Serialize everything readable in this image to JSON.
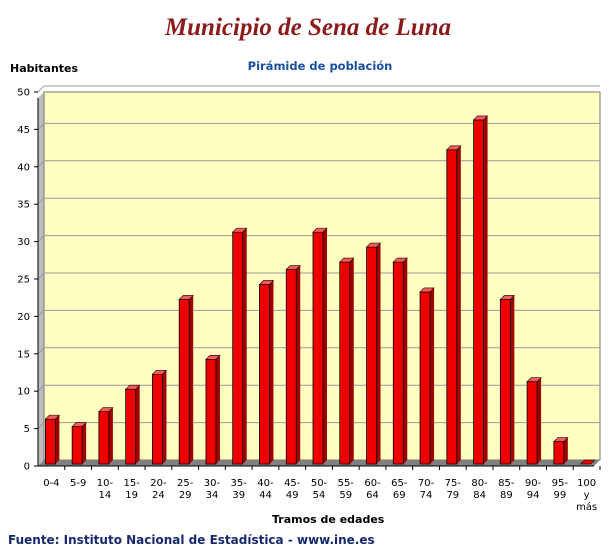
{
  "header": {
    "title": "Municipio de Sena de Luna",
    "subtitle": "Pirámide de población"
  },
  "footer": {
    "source": "Fuente: Instituto Nacional de Estadística - www.ine.es"
  },
  "chart_data": {
    "type": "bar",
    "title": "Pirámide de población",
    "ylabel": "Habitantes",
    "xlabel": "Tramos de edades",
    "ylim": [
      0,
      50
    ],
    "yticks": [
      0,
      5,
      10,
      15,
      20,
      25,
      30,
      35,
      40,
      45,
      50
    ],
    "grid": true,
    "legend": "none",
    "colors": {
      "bar": "#ee0000",
      "bar_side": "#a00000",
      "bar_top": "#ff5a5a",
      "plot_bg": "#ffffc0",
      "floor": "#808080"
    },
    "categories": [
      "0-4",
      "5-9",
      "10-14",
      "15-19",
      "20-24",
      "25-29",
      "30-34",
      "35-39",
      "40-44",
      "45-49",
      "50-54",
      "55-59",
      "60-64",
      "65-69",
      "70-74",
      "75-79",
      "80-84",
      "85-89",
      "90-94",
      "95-99",
      "100 y más"
    ],
    "category_lines": [
      [
        "0-4"
      ],
      [
        "5-9"
      ],
      [
        "10-",
        "14"
      ],
      [
        "15-",
        "19"
      ],
      [
        "20-",
        "24"
      ],
      [
        "25-",
        "29"
      ],
      [
        "30-",
        "34"
      ],
      [
        "35-",
        "39"
      ],
      [
        "40-",
        "44"
      ],
      [
        "45-",
        "49"
      ],
      [
        "50-",
        "54"
      ],
      [
        "55-",
        "59"
      ],
      [
        "60-",
        "64"
      ],
      [
        "65-",
        "69"
      ],
      [
        "70-",
        "74"
      ],
      [
        "75-",
        "79"
      ],
      [
        "80-",
        "84"
      ],
      [
        "85-",
        "89"
      ],
      [
        "90-",
        "94"
      ],
      [
        "95-",
        "99"
      ],
      [
        "100",
        "y",
        "más"
      ]
    ],
    "values": [
      6,
      5,
      7,
      10,
      12,
      22,
      14,
      31,
      24,
      26,
      31,
      27,
      29,
      27,
      23,
      42,
      46,
      22,
      11,
      3,
      0
    ]
  }
}
